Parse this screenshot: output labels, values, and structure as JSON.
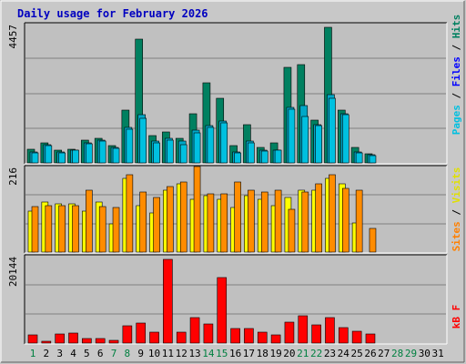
{
  "title": "Daily usage for February 2026",
  "colors": {
    "background": "#c8c8c8",
    "plot": "#c0c0c0",
    "grid": "#808080",
    "hits": "#008060",
    "files": "#0000ff",
    "pages": "#00c0e0",
    "visits": "#ff8000",
    "sites": "#ff8000",
    "visits_fill": "#ffff00",
    "sites_fill": "#ff8c00",
    "kbytes": "#ff0000",
    "weekday_label": "#000000",
    "weekend_label": "#008040"
  },
  "right_labels": {
    "top": [
      {
        "text": "Pages",
        "color": "#00c0e0"
      },
      {
        "text": " / ",
        "color": "#000000"
      },
      {
        "text": "Files",
        "color": "#0000ff"
      },
      {
        "text": " / ",
        "color": "#000000"
      },
      {
        "text": "Hits",
        "color": "#008060"
      }
    ],
    "middle": [
      {
        "text": "Sites",
        "color": "#ff8000"
      },
      {
        "text": " / ",
        "color": "#000000"
      },
      {
        "text": "Visits",
        "color": "#e0e000"
      }
    ],
    "bottom": [
      {
        "text": "kB F",
        "color": "#ff0000"
      }
    ]
  },
  "chart_data": {
    "type": "bar",
    "title": "Daily usage for February 2026",
    "x": {
      "label": "Day of month",
      "days": [
        1,
        2,
        3,
        4,
        5,
        6,
        7,
        8,
        9,
        10,
        11,
        12,
        13,
        14,
        15,
        16,
        17,
        18,
        19,
        20,
        21,
        22,
        23,
        24,
        25,
        26,
        27,
        28,
        29,
        30,
        31
      ],
      "weekend_days": [
        1,
        7,
        8,
        14,
        15,
        21,
        22,
        28,
        29
      ]
    },
    "panels": [
      {
        "name": "hits_files_pages",
        "scale_max_label": "4457",
        "ylim": [
          0,
          4457
        ],
        "series": [
          {
            "name": "Hits",
            "values": [
              450,
              650,
              400,
              450,
              750,
              800,
              550,
              1700,
              4000,
              900,
              1000,
              800,
              1600,
              2600,
              2100,
              550,
              1250,
              500,
              650,
              3100,
              3200,
              1400,
              4400,
              1700,
              500,
              290,
              0,
              0,
              0,
              0,
              0
            ]
          },
          {
            "name": "Files",
            "values": [
              350,
              600,
              350,
              400,
              650,
              750,
              500,
              1150,
              1550,
              700,
              800,
              700,
              1050,
              1200,
              1350,
              350,
              700,
              400,
              400,
              1800,
              1850,
              1250,
              2200,
              1600,
              350,
              260,
              0,
              0,
              0,
              0,
              0
            ]
          },
          {
            "name": "Pages",
            "values": [
              330,
              560,
              330,
              420,
              620,
              700,
              480,
              1100,
              1450,
              650,
              750,
              600,
              980,
              1150,
              1300,
              330,
              650,
              370,
              400,
              1750,
              1500,
              1200,
              2100,
              1550,
              320,
              240,
              0,
              0,
              0,
              0,
              0
            ]
          }
        ]
      },
      {
        "name": "visits_sites",
        "scale_max_label": "216",
        "ylim": [
          0,
          216
        ],
        "series": [
          {
            "name": "Visits",
            "values": [
              105,
              130,
              125,
              125,
              105,
              130,
              72,
              190,
              120,
              100,
              160,
              175,
              135,
              145,
              135,
              115,
              145,
              135,
              120,
              140,
              160,
              160,
              190,
              175,
              75,
              0,
              0,
              0,
              0,
              0,
              0
            ]
          },
          {
            "name": "Sites",
            "values": [
              118,
              120,
              120,
              120,
              160,
              118,
              115,
              200,
              155,
              140,
              170,
              180,
              220,
              150,
              150,
              180,
              160,
              155,
              160,
              110,
              155,
              175,
              200,
              165,
              160,
              60,
              0,
              0,
              0,
              0,
              0
            ]
          }
        ]
      },
      {
        "name": "kbytes",
        "scale_max_label": "20144",
        "ylim": [
          0,
          20144
        ],
        "series": [
          {
            "name": "kB F",
            "values": [
              2000,
              500,
              2200,
              2300,
              1000,
              1100,
              700,
              4000,
              4800,
              2600,
              19700,
              2600,
              6000,
              4500,
              15500,
              3500,
              3500,
              2600,
              2000,
              5000,
              6500,
              4300,
              6000,
              3700,
              2800,
              2100,
              0,
              0,
              0,
              0,
              0
            ]
          }
        ]
      }
    ]
  }
}
